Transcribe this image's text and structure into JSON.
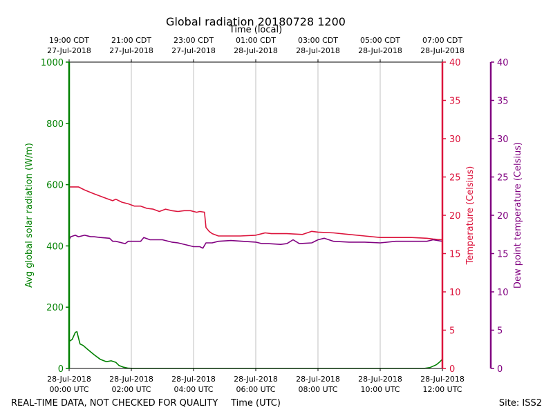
{
  "chart_data": {
    "type": "line",
    "title": "Global radiation 20180728 1200",
    "top_axis_label": "Time (local)",
    "xlabel": "Time (UTC)",
    "ylabel_left": "Avg global solar radiation (W/m)",
    "ylabel_right1": "Temperature (Celsius)",
    "ylabel_right2": "Dew point temperature (Celsius)",
    "footer_left": "REAL-TIME DATA, NOT CHECKED FOR QUALITY",
    "footer_right": "Site: ISS2",
    "x_unit": "hours since 28-Jul-2018 00:00 UTC",
    "xlim": [
      0,
      12
    ],
    "bottom_ticks": [
      {
        "x": 0,
        "line1": "28-Jul-2018",
        "line2": "00:00 UTC"
      },
      {
        "x": 2,
        "line1": "28-Jul-2018",
        "line2": "02:00 UTC"
      },
      {
        "x": 4,
        "line1": "28-Jul-2018",
        "line2": "04:00 UTC"
      },
      {
        "x": 6,
        "line1": "28-Jul-2018",
        "line2": "06:00 UTC"
      },
      {
        "x": 8,
        "line1": "28-Jul-2018",
        "line2": "08:00 UTC"
      },
      {
        "x": 10,
        "line1": "28-Jul-2018",
        "line2": "10:00 UTC"
      },
      {
        "x": 12,
        "line1": "28-Jul-2018",
        "line2": "12:00 UTC"
      }
    ],
    "top_ticks": [
      {
        "x": 0,
        "line1": "19:00 CDT",
        "line2": "27-Jul-2018"
      },
      {
        "x": 2,
        "line1": "21:00 CDT",
        "line2": "27-Jul-2018"
      },
      {
        "x": 4,
        "line1": "23:00 CDT",
        "line2": "27-Jul-2018"
      },
      {
        "x": 6,
        "line1": "01:00 CDT",
        "line2": "28-Jul-2018"
      },
      {
        "x": 8,
        "line1": "03:00 CDT",
        "line2": "28-Jul-2018"
      },
      {
        "x": 10,
        "line1": "05:00 CDT",
        "line2": "28-Jul-2018"
      },
      {
        "x": 12,
        "line1": "07:00 CDT",
        "line2": "28-Jul-2018"
      }
    ],
    "ylim_left": [
      0,
      1000
    ],
    "yticks_left": [
      "0",
      "200",
      "400",
      "600",
      "800",
      "1000"
    ],
    "ylim_right": [
      0,
      40
    ],
    "yticks_right": [
      "0",
      "5",
      "10",
      "15",
      "20",
      "25",
      "30",
      "35",
      "40"
    ],
    "grid": "vertical",
    "colors": {
      "radiation": "#008000",
      "temperature": "#dc143c",
      "dewpoint": "#800080"
    },
    "series": [
      {
        "key": "radiation",
        "axis": "left",
        "x": [
          0,
          0.1,
          0.2,
          0.25,
          0.3,
          0.35,
          0.45,
          0.6,
          0.8,
          1.0,
          1.2,
          1.35,
          1.5,
          1.6,
          1.75,
          1.9,
          2.1,
          3,
          4,
          5,
          6,
          7,
          8,
          9,
          10,
          11,
          11.4,
          11.6,
          11.8,
          11.9,
          12
        ],
        "values": [
          88,
          95,
          118,
          120,
          100,
          80,
          75,
          62,
          45,
          30,
          22,
          25,
          20,
          10,
          4,
          1,
          0,
          0,
          0,
          0,
          0,
          0,
          0,
          0,
          0,
          0,
          0,
          3,
          12,
          20,
          30
        ]
      },
      {
        "key": "temperature",
        "axis": "right",
        "x": [
          0,
          0.3,
          0.5,
          0.8,
          1.0,
          1.2,
          1.4,
          1.5,
          1.7,
          1.9,
          2.1,
          2.3,
          2.5,
          2.7,
          2.9,
          3.1,
          3.3,
          3.5,
          3.7,
          3.9,
          4.1,
          4.2,
          4.35,
          4.4,
          4.5,
          4.6,
          4.8,
          5.0,
          5.5,
          6.0,
          6.3,
          6.5,
          7.0,
          7.5,
          7.8,
          8.0,
          8.5,
          9.0,
          9.5,
          10.0,
          10.5,
          11.0,
          11.5,
          11.7,
          12.0
        ],
        "values": [
          23.7,
          23.7,
          23.3,
          22.8,
          22.5,
          22.2,
          21.9,
          22.1,
          21.7,
          21.5,
          21.2,
          21.2,
          20.9,
          20.8,
          20.5,
          20.8,
          20.6,
          20.5,
          20.6,
          20.6,
          20.4,
          20.5,
          20.4,
          18.4,
          17.9,
          17.6,
          17.3,
          17.3,
          17.3,
          17.4,
          17.7,
          17.6,
          17.6,
          17.5,
          17.9,
          17.8,
          17.7,
          17.5,
          17.3,
          17.1,
          17.1,
          17.1,
          17.0,
          16.9,
          16.8
        ]
      },
      {
        "key": "dewpoint",
        "axis": "right",
        "x": [
          0,
          0.05,
          0.2,
          0.3,
          0.5,
          0.7,
          0.8,
          1.0,
          1.3,
          1.4,
          1.5,
          1.8,
          1.9,
          2.0,
          2.3,
          2.4,
          2.6,
          3.0,
          3.3,
          3.5,
          3.9,
          4.0,
          4.2,
          4.3,
          4.4,
          4.6,
          4.8,
          5.2,
          6.0,
          6.2,
          6.4,
          6.8,
          7.0,
          7.2,
          7.4,
          7.8,
          8.0,
          8.2,
          8.5,
          9.0,
          9.5,
          10.0,
          10.5,
          11.0,
          11.5,
          11.7,
          12.0
        ],
        "values": [
          16.8,
          17.2,
          17.4,
          17.2,
          17.4,
          17.2,
          17.2,
          17.1,
          17.0,
          16.6,
          16.6,
          16.3,
          16.6,
          16.6,
          16.6,
          17.1,
          16.8,
          16.8,
          16.5,
          16.4,
          16.0,
          15.9,
          15.9,
          15.7,
          16.4,
          16.4,
          16.6,
          16.7,
          16.5,
          16.3,
          16.3,
          16.2,
          16.3,
          16.8,
          16.3,
          16.4,
          16.8,
          17.0,
          16.6,
          16.5,
          16.5,
          16.4,
          16.6,
          16.6,
          16.6,
          16.8,
          16.6
        ]
      }
    ]
  }
}
